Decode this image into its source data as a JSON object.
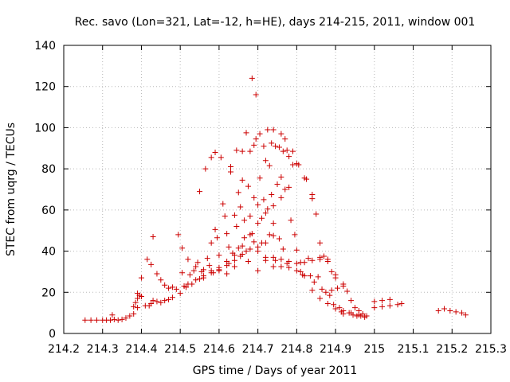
{
  "chart_data": {
    "type": "scatter",
    "title": "Rec. savo (Lon=321, Lat=-12, h=HE), days 214-215, 2011, window 001",
    "xlabel": "GPS time / Days of year 2011",
    "ylabel": "STEC from uqrg / TECUs",
    "xlim": [
      214.2,
      215.3
    ],
    "ylim": [
      0,
      140
    ],
    "xticks": [
      "214.2",
      "214.3",
      "214.4",
      "214.5",
      "214.6",
      "214.7",
      "214.8",
      "214.9",
      "215",
      "215.1",
      "215.2",
      "215.3"
    ],
    "yticks": [
      "0",
      "20",
      "40",
      "60",
      "80",
      "100",
      "120",
      "140"
    ],
    "grid": true,
    "marker": "plus",
    "color": "#cc0000",
    "series": [
      {
        "points": [
          [
            214.255,
            6.5
          ],
          [
            214.27,
            6.5
          ],
          [
            214.285,
            6.5
          ],
          [
            214.3,
            6.5
          ],
          [
            214.31,
            6.5
          ],
          [
            214.32,
            6.5
          ],
          [
            214.33,
            6.8
          ],
          [
            214.34,
            6.5
          ],
          [
            214.35,
            6.8
          ],
          [
            214.36,
            7.5
          ],
          [
            214.37,
            8.5
          ],
          [
            214.38,
            9.5
          ],
          [
            214.325,
            9.0
          ],
          [
            214.38,
            13.0
          ],
          [
            214.385,
            15.0
          ],
          [
            214.39,
            12.5
          ],
          [
            214.39,
            17.0
          ],
          [
            214.4,
            18.0
          ],
          [
            214.39,
            19.5
          ],
          [
            214.395,
            18.5
          ],
          [
            214.4,
            27.0
          ],
          [
            214.41,
            13.5
          ],
          [
            214.42,
            13.5
          ],
          [
            214.425,
            14.5
          ],
          [
            214.43,
            16.0
          ],
          [
            214.44,
            15.5
          ],
          [
            214.45,
            15.0
          ],
          [
            214.46,
            16.0
          ],
          [
            214.47,
            16.5
          ],
          [
            214.48,
            17.5
          ],
          [
            214.415,
            36.0
          ],
          [
            214.425,
            33.5
          ],
          [
            214.43,
            47.0
          ],
          [
            214.44,
            29.0
          ],
          [
            214.45,
            26.0
          ],
          [
            214.46,
            23.5
          ],
          [
            214.47,
            22.0
          ],
          [
            214.48,
            22.5
          ],
          [
            214.49,
            21.5
          ],
          [
            214.495,
            48.0
          ],
          [
            214.5,
            19.5
          ],
          [
            214.505,
            41.5
          ],
          [
            214.505,
            29.5
          ],
          [
            214.51,
            23.0
          ],
          [
            214.515,
            22.5
          ],
          [
            214.52,
            36.0
          ],
          [
            214.525,
            28.5
          ],
          [
            214.53,
            24.0
          ],
          [
            214.535,
            30.5
          ],
          [
            214.54,
            32.5
          ],
          [
            214.545,
            34.5
          ],
          [
            214.55,
            26.5
          ],
          [
            214.55,
            69.0
          ],
          [
            214.555,
            30.0
          ],
          [
            214.56,
            27.0
          ],
          [
            214.565,
            80.0
          ],
          [
            214.57,
            36.5
          ],
          [
            214.575,
            33.0
          ],
          [
            214.58,
            44.0
          ],
          [
            214.585,
            29.5
          ],
          [
            214.58,
            85.5
          ],
          [
            214.59,
            88.0
          ],
          [
            214.59,
            50.5
          ],
          [
            214.595,
            46.5
          ],
          [
            214.6,
            38.0
          ],
          [
            214.6,
            30.5
          ],
          [
            214.605,
            85.5
          ],
          [
            214.61,
            63.0
          ],
          [
            214.615,
            57.0
          ],
          [
            214.62,
            48.5
          ],
          [
            214.62,
            29.0
          ],
          [
            214.625,
            42.0
          ],
          [
            214.625,
            34.0
          ],
          [
            214.63,
            81.0
          ],
          [
            214.63,
            78.5
          ],
          [
            214.635,
            39.0
          ],
          [
            214.64,
            32.5
          ],
          [
            214.64,
            57.5
          ],
          [
            214.645,
            52.0
          ],
          [
            214.645,
            89.0
          ],
          [
            214.65,
            68.5
          ],
          [
            214.65,
            41.5
          ],
          [
            214.655,
            61.5
          ],
          [
            214.655,
            37.5
          ],
          [
            214.66,
            88.5
          ],
          [
            214.66,
            74.5
          ],
          [
            214.665,
            55.0
          ],
          [
            214.665,
            46.5
          ],
          [
            214.67,
            97.5
          ],
          [
            214.67,
            40.0
          ],
          [
            214.675,
            71.5
          ],
          [
            214.675,
            35.0
          ],
          [
            214.68,
            88.5
          ],
          [
            214.68,
            57.0
          ],
          [
            214.685,
            124.0
          ],
          [
            214.685,
            48.5
          ],
          [
            214.69,
            91.5
          ],
          [
            214.69,
            66.0
          ],
          [
            214.69,
            44.5
          ],
          [
            214.695,
            116.0
          ],
          [
            214.695,
            94.5
          ],
          [
            214.7,
            62.5
          ],
          [
            214.7,
            40.0
          ],
          [
            214.705,
            97.0
          ],
          [
            214.705,
            75.5
          ],
          [
            214.71,
            56.0
          ],
          [
            214.71,
            44.0
          ],
          [
            214.715,
            91.0
          ],
          [
            214.715,
            65.0
          ],
          [
            214.72,
            84.0
          ],
          [
            214.72,
            37.0
          ],
          [
            214.725,
            99.0
          ],
          [
            214.725,
            60.5
          ],
          [
            214.73,
            81.5
          ],
          [
            214.73,
            48.0
          ],
          [
            214.735,
            92.5
          ],
          [
            214.735,
            67.5
          ],
          [
            214.74,
            99.0
          ],
          [
            214.74,
            53.5
          ],
          [
            214.745,
            91.0
          ],
          [
            214.745,
            35.5
          ],
          [
            214.75,
            72.5
          ],
          [
            214.755,
            90.5
          ],
          [
            214.755,
            46.0
          ],
          [
            214.76,
            97.0
          ],
          [
            214.76,
            76.0
          ],
          [
            214.765,
            88.5
          ],
          [
            214.765,
            41.0
          ],
          [
            214.77,
            94.5
          ],
          [
            214.77,
            70.0
          ],
          [
            214.775,
            89.0
          ],
          [
            214.775,
            34.0
          ],
          [
            214.78,
            86.0
          ],
          [
            214.785,
            55.0
          ],
          [
            214.79,
            88.5
          ],
          [
            214.79,
            82.0
          ],
          [
            214.795,
            48.0
          ],
          [
            214.8,
            82.5
          ],
          [
            214.8,
            40.5
          ],
          [
            214.805,
            82.0
          ],
          [
            214.81,
            34.5
          ],
          [
            214.81,
            30.0
          ],
          [
            214.815,
            28.5
          ],
          [
            214.82,
            75.5
          ],
          [
            214.825,
            75.0
          ],
          [
            214.83,
            36.5
          ],
          [
            214.835,
            28.0
          ],
          [
            214.84,
            67.5
          ],
          [
            214.84,
            65.5
          ],
          [
            214.845,
            25.0
          ],
          [
            214.85,
            58.0
          ],
          [
            214.855,
            27.5
          ],
          [
            214.86,
            44.0
          ],
          [
            214.86,
            36.0
          ],
          [
            214.865,
            21.5
          ],
          [
            214.87,
            37.5
          ],
          [
            214.875,
            20.0
          ],
          [
            214.88,
            35.0
          ],
          [
            214.885,
            18.5
          ],
          [
            214.89,
            30.0
          ],
          [
            214.89,
            21.0
          ],
          [
            214.895,
            14.0
          ],
          [
            214.9,
            28.5
          ],
          [
            214.905,
            22.0
          ],
          [
            214.91,
            12.5
          ],
          [
            214.915,
            10.5
          ],
          [
            214.92,
            24.0
          ],
          [
            214.92,
            9.5
          ],
          [
            214.93,
            20.5
          ],
          [
            214.935,
            10.0
          ],
          [
            214.94,
            16.0
          ],
          [
            214.945,
            9.0
          ],
          [
            214.95,
            12.5
          ],
          [
            214.955,
            8.5
          ],
          [
            214.96,
            11.0
          ],
          [
            214.965,
            8.5
          ],
          [
            214.97,
            9.5
          ],
          [
            214.975,
            8.0
          ],
          [
            214.98,
            8.5
          ],
          [
            214.74,
            32.5
          ],
          [
            214.76,
            32.5
          ],
          [
            214.78,
            32.0
          ],
          [
            214.8,
            30.5
          ],
          [
            214.82,
            28.0
          ],
          [
            214.84,
            21.0
          ],
          [
            214.86,
            17.0
          ],
          [
            214.88,
            14.5
          ],
          [
            214.9,
            12.0
          ],
          [
            214.92,
            11.0
          ],
          [
            214.94,
            10.0
          ],
          [
            214.96,
            9.0
          ],
          [
            214.7,
            30.5
          ],
          [
            214.72,
            35.5
          ],
          [
            214.74,
            37.0
          ],
          [
            214.76,
            36.0
          ],
          [
            214.78,
            35.0
          ],
          [
            214.8,
            34.0
          ],
          [
            214.82,
            34.5
          ],
          [
            214.84,
            35.5
          ],
          [
            214.86,
            37.0
          ],
          [
            214.88,
            36.0
          ],
          [
            214.9,
            27.0
          ],
          [
            214.92,
            23.0
          ],
          [
            214.56,
            31.0
          ],
          [
            214.58,
            30.5
          ],
          [
            214.6,
            31.0
          ],
          [
            214.62,
            33.0
          ],
          [
            214.64,
            35.5
          ],
          [
            214.66,
            38.5
          ],
          [
            214.68,
            41.0
          ],
          [
            214.7,
            42.0
          ],
          [
            214.72,
            44.0
          ],
          [
            214.74,
            47.5
          ],
          [
            214.52,
            24.0
          ],
          [
            214.54,
            26.0
          ],
          [
            214.56,
            28.0
          ],
          [
            214.58,
            29.5
          ],
          [
            214.6,
            32.0
          ],
          [
            214.62,
            35.0
          ],
          [
            214.64,
            38.0
          ],
          [
            214.66,
            42.5
          ],
          [
            214.68,
            48.0
          ],
          [
            214.7,
            53.5
          ],
          [
            214.72,
            58.5
          ],
          [
            214.74,
            62.0
          ],
          [
            214.76,
            66.0
          ],
          [
            214.78,
            71.0
          ],
          [
            215.0,
            15.5
          ],
          [
            215.02,
            16.0
          ],
          [
            215.04,
            16.5
          ],
          [
            215.0,
            12.5
          ],
          [
            215.02,
            13.0
          ],
          [
            215.04,
            13.5
          ],
          [
            215.06,
            14.0
          ],
          [
            215.07,
            14.5
          ],
          [
            215.165,
            11.0
          ],
          [
            215.18,
            12.0
          ],
          [
            215.195,
            11.0
          ],
          [
            215.21,
            10.5
          ],
          [
            215.225,
            10.0
          ],
          [
            215.235,
            9.0
          ]
        ]
      }
    ]
  }
}
